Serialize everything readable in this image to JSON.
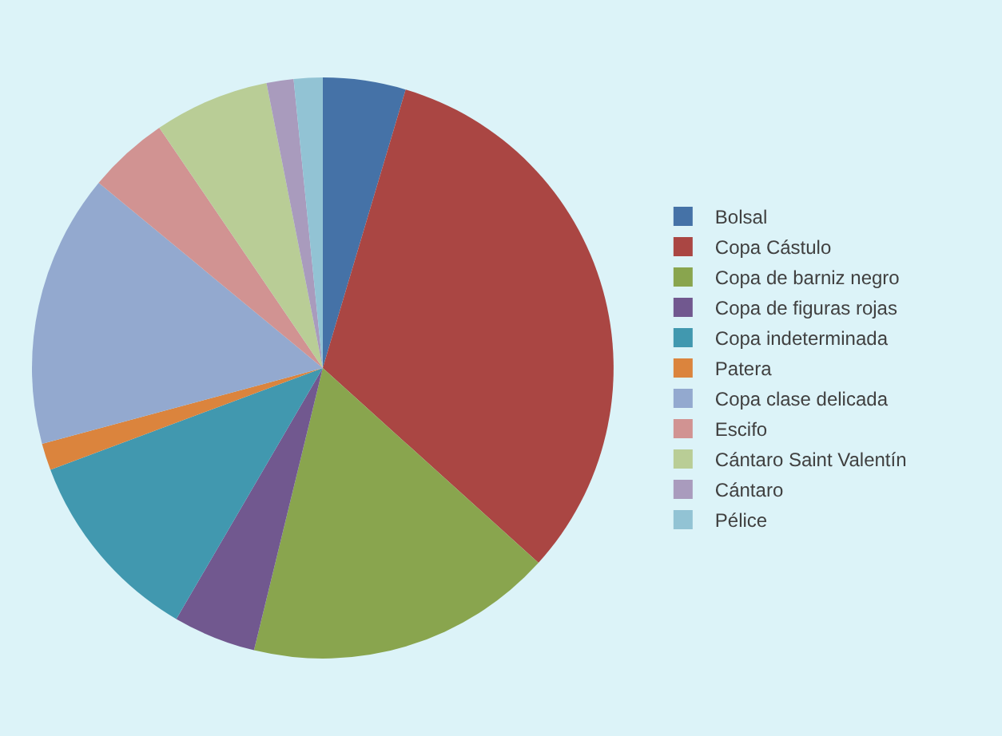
{
  "chart_data": {
    "type": "pie",
    "categories": [
      "Bolsal",
      "Copa Cástulo",
      "Copa de barniz negro",
      "Copa de figuras rojas",
      "Copa indeterminada",
      "Patera",
      "Copa clase delicada",
      "Escifo",
      "Cántaro Saint Valentín",
      "Cántaro",
      "Pélice"
    ],
    "values": [
      4.6,
      32.1,
      17.1,
      4.6,
      10.9,
      1.5,
      15.2,
      4.5,
      6.4,
      1.5,
      1.6
    ],
    "colors": [
      "#4572a7",
      "#aa4643",
      "#89a54e",
      "#71588f",
      "#4198af",
      "#db843d",
      "#93a9cf",
      "#d19392",
      "#b9cd96",
      "#a99bbd",
      "#92c3d4"
    ],
    "legend": "right"
  }
}
